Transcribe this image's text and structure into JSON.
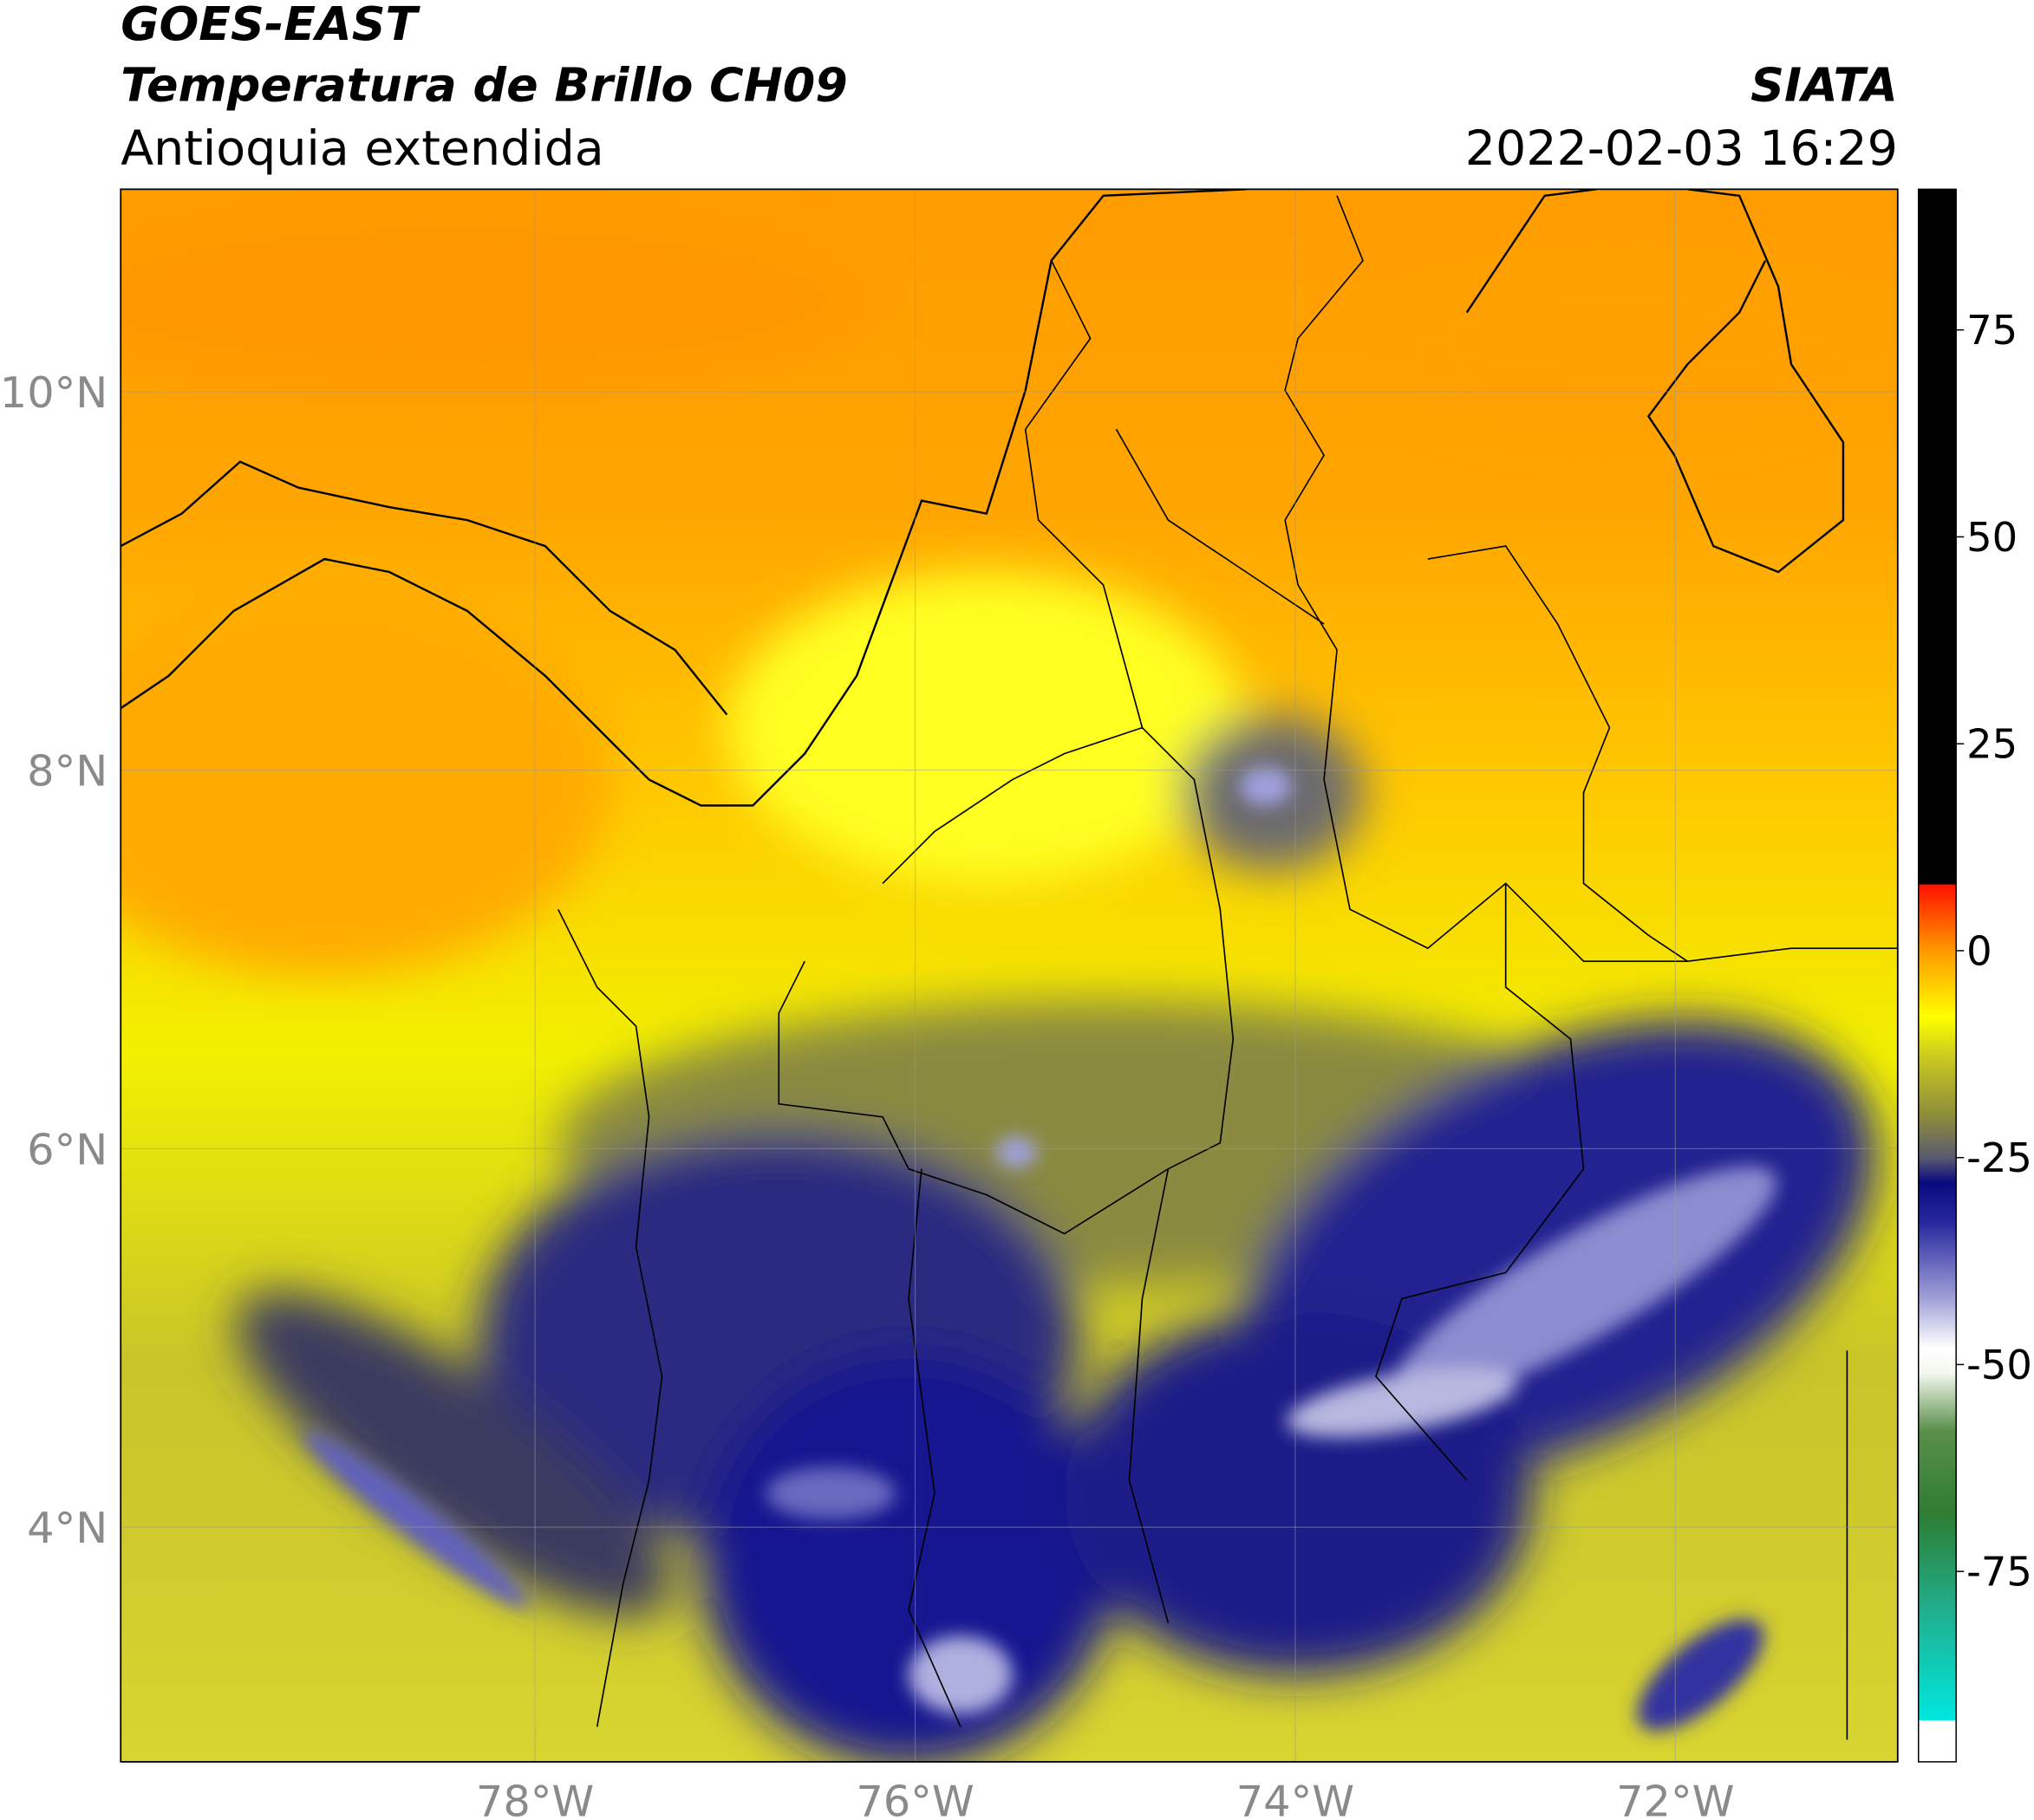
{
  "header": {
    "title": "GOES-EAST",
    "subtitle": "Temperatura de Brillo CH09",
    "region": "Antioquia extendida",
    "source": "SIATA",
    "datetime": "2022-02-03 16:29"
  },
  "map": {
    "xlim": [
      -80.18,
      -70.83
    ],
    "ylim": [
      2.76,
      11.07
    ],
    "xticks": [
      {
        "value": -78,
        "label": "78°W"
      },
      {
        "value": -76,
        "label": "76°W"
      },
      {
        "value": -74,
        "label": "74°W"
      },
      {
        "value": -72,
        "label": "72°W"
      }
    ],
    "yticks": [
      {
        "value": 10,
        "label": "10°N"
      },
      {
        "value": 8,
        "label": "8°N"
      },
      {
        "value": 6,
        "label": "6°N"
      },
      {
        "value": 4,
        "label": "4°N"
      }
    ],
    "grid": true
  },
  "colorbar": {
    "lim": [
      -98,
      92
    ],
    "ticks": [
      75,
      50,
      25,
      0,
      -25,
      -50,
      -75
    ],
    "stops": [
      {
        "value": -98,
        "color": "#ffffff"
      },
      {
        "value": -93,
        "color": "#ffffff"
      },
      {
        "value": -93,
        "color": "#00e8e0"
      },
      {
        "value": -80,
        "color": "#20b090"
      },
      {
        "value": -68,
        "color": "#2e7d32"
      },
      {
        "value": -58,
        "color": "#5a8f4a"
      },
      {
        "value": -51,
        "color": "#f4f8f0"
      },
      {
        "value": -48,
        "color": "#ffffff"
      },
      {
        "value": -42,
        "color": "#a0a0d8"
      },
      {
        "value": -33,
        "color": "#2a2aa0"
      },
      {
        "value": -28,
        "color": "#0a0a80"
      },
      {
        "value": -25,
        "color": "#5a5a70"
      },
      {
        "value": -20,
        "color": "#8c8c3c"
      },
      {
        "value": -13,
        "color": "#c8c820"
      },
      {
        "value": -8,
        "color": "#ffff00"
      },
      {
        "value": 0,
        "color": "#ff9900"
      },
      {
        "value": 8,
        "color": "#ff1000"
      },
      {
        "value": 8,
        "color": "#000000"
      },
      {
        "value": 92,
        "color": "#000000"
      }
    ]
  }
}
